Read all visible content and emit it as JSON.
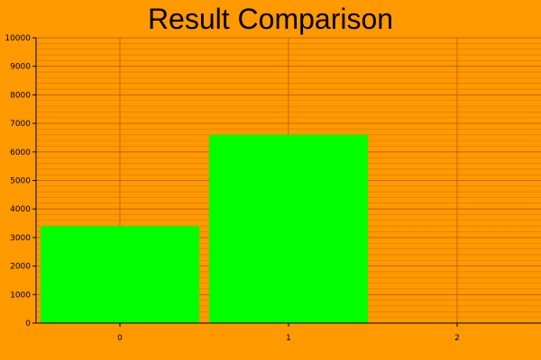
{
  "colors": {
    "background": "#ff9900",
    "bar": "#00ff00",
    "grid_major": "#b25f00",
    "grid_minor": "#d47a00",
    "axis": "#000000",
    "text": "#000000"
  },
  "chart_data": {
    "type": "bar",
    "title": "Result Comparison",
    "xlabel": "",
    "ylabel": "",
    "categories": [
      "0",
      "1",
      "2"
    ],
    "values": [
      3400,
      6600,
      0
    ],
    "ylim": [
      0,
      10000
    ],
    "yticks": [
      0,
      1000,
      2000,
      3000,
      4000,
      5000,
      6000,
      7000,
      8000,
      9000,
      10000
    ],
    "grid": true,
    "minor_grid": true,
    "legend": "none"
  }
}
